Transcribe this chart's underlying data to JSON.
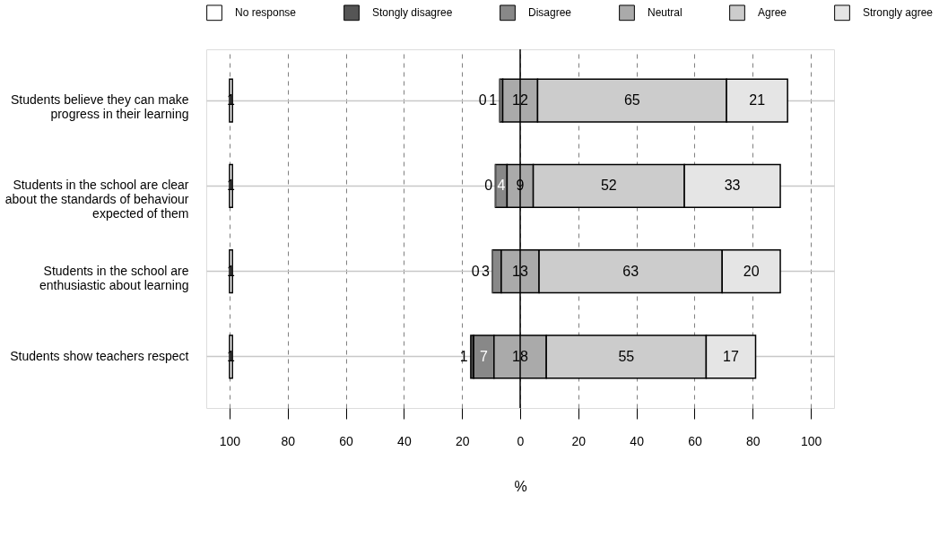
{
  "chart_data": {
    "type": "bar",
    "orientation": "horizontal",
    "xlabel": "%",
    "categories": [
      "Students believe they can make progress in their learning",
      "Students in the school are clear about the standards of behaviour expected of them",
      "Students in the school are enthusiastic about learning",
      "Students show teachers respect"
    ],
    "series": [
      {
        "name": "No response",
        "color": "#ffffff",
        "values": [
          1,
          1,
          1,
          1
        ],
        "base": [
          -100,
          -100,
          -100,
          -100
        ]
      },
      {
        "name": "Stongly disagree",
        "color": "#555555",
        "values": [
          0,
          0,
          0,
          1
        ],
        "base": [
          -7,
          -8.5,
          -9.5,
          -17
        ]
      },
      {
        "name": "Disagree",
        "color": "#888888",
        "values": [
          1,
          4,
          3,
          7
        ],
        "base": [
          -7,
          -8.5,
          -9.5,
          -16
        ]
      },
      {
        "name": "Neutral",
        "color": "#aaaaaa",
        "values": [
          12,
          9,
          13,
          18
        ],
        "base": [
          -6,
          -4.5,
          -6.5,
          -9
        ]
      },
      {
        "name": "Agree",
        "color": "#cccccc",
        "values": [
          65,
          52,
          63,
          55
        ],
        "base": [
          6,
          4.5,
          6.5,
          9
        ]
      },
      {
        "name": "Strongly agree",
        "color": "#e5e5e5",
        "values": [
          21,
          33,
          20,
          17
        ],
        "base": [
          71,
          56.5,
          69.5,
          64
        ]
      }
    ],
    "xlim": [
      -108,
      108
    ],
    "xticks": [
      {
        "value": -100,
        "label": "100"
      },
      {
        "value": -80,
        "label": "80"
      },
      {
        "value": -60,
        "label": "60"
      },
      {
        "value": -40,
        "label": "40"
      },
      {
        "value": -20,
        "label": "20"
      },
      0,
      20,
      40,
      60,
      80,
      100
    ],
    "ref_lines": [
      {
        "axis": "x",
        "value": 0
      }
    ],
    "grid": true,
    "legend": "top",
    "data_labels": true
  }
}
